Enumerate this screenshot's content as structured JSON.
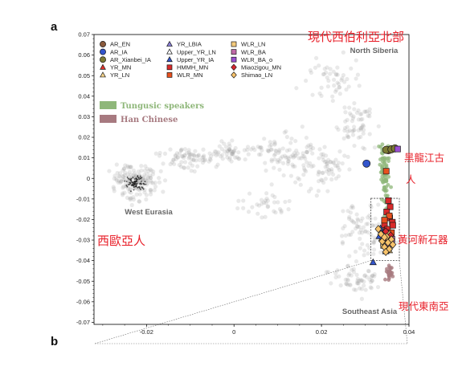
{
  "panel_labels": {
    "a": "a",
    "b": "b"
  },
  "annotations_zh": {
    "north_siberia": "現代西伯利亞北部",
    "heilongjiang": "黑龍江古人",
    "yellow_river": "黃河新石器",
    "west_europe": "西歐亞人",
    "southeast_asia": "現代東南亞"
  },
  "colors": {
    "annotation_red": "#e8202a",
    "background_samples": "#9a9a9a",
    "tungusic": "#8fb77a",
    "han": "#a77a80",
    "frame": "#000000"
  },
  "icons": {
    "circle": "circle-marker",
    "triangle": "triangle-marker",
    "square": "square-marker",
    "diamond": "diamond-marker"
  },
  "chart_data": {
    "type": "scatter",
    "xlim": [
      -0.032,
      0.04
    ],
    "ylim": [
      -0.071,
      0.07
    ],
    "x_ticks": [
      -0.02,
      0,
      0.02,
      0.04
    ],
    "x_tick_labels": [
      "-0.02",
      "0",
      "0.02",
      "0.04"
    ],
    "y_ticks": [
      0.07,
      0.06,
      0.05,
      0.04,
      0.03,
      0.02,
      0.01,
      0,
      -0.01,
      -0.02,
      -0.03,
      -0.04,
      -0.05,
      -0.06,
      -0.07
    ],
    "y_tick_labels": [
      "0.07",
      "0.06",
      "0.05",
      "0.04",
      "0.03",
      "0.02",
      "0.01",
      "0",
      "-0.01",
      "-0.02",
      "-0.03",
      "-0.04",
      "-0.05",
      "-0.06",
      "-0.07"
    ],
    "grid": false,
    "legend_position": "top-left",
    "region_labels": [
      {
        "text": "North Siberia",
        "x": 0.032,
        "y": 0.061
      },
      {
        "text": "West Eurasia",
        "x": -0.0195,
        "y": -0.0175
      },
      {
        "text": "Southeast Asia",
        "x": 0.031,
        "y": -0.066
      }
    ],
    "series": [
      {
        "name": "AR_EN",
        "marker": "circle",
        "color": "#8a5a3c",
        "points": [
          [
            0.0353,
            0.0137
          ]
        ]
      },
      {
        "name": "AR_IA",
        "marker": "circle",
        "color": "#3355cc",
        "points": [
          [
            0.0303,
            0.0072
          ]
        ]
      },
      {
        "name": "AR_Xianbei_IA",
        "marker": "circle",
        "color": "#7c7a34",
        "points": [
          [
            0.0348,
            0.0139
          ],
          [
            0.036,
            0.0142
          ],
          [
            0.0368,
            0.0146
          ]
        ]
      },
      {
        "name": "YR_MN",
        "marker": "triangle",
        "color": "#e0332c",
        "points": [
          [
            0.0345,
            -0.0245
          ],
          [
            0.0352,
            -0.0262
          ],
          [
            0.0348,
            -0.0305
          ],
          [
            0.0357,
            -0.0286
          ]
        ]
      },
      {
        "name": "YR_LN",
        "marker": "triangle",
        "color": "#f5d38a",
        "points": [
          [
            0.0343,
            -0.0272
          ],
          [
            0.0352,
            -0.0331
          ],
          [
            0.0338,
            -0.0292
          ],
          [
            0.0355,
            -0.035
          ]
        ]
      },
      {
        "name": "YR_LBIA",
        "marker": "triangle",
        "color": "#8a7fd8",
        "points": [
          [
            0.0336,
            -0.0281
          ],
          [
            0.0346,
            -0.0317
          ],
          [
            0.0355,
            -0.0303
          ]
        ]
      },
      {
        "name": "Upper_YR_LN",
        "marker": "triangle",
        "color": "#ffffff",
        "points": [
          [
            0.0342,
            -0.0312
          ],
          [
            0.035,
            -0.0338
          ]
        ]
      },
      {
        "name": "Upper_YR_IA",
        "marker": "triangle",
        "color": "#3355cc",
        "points": [
          [
            0.0335,
            -0.0243
          ],
          [
            0.0341,
            -0.0263
          ],
          [
            0.0332,
            -0.0281
          ],
          [
            0.0347,
            -0.0355
          ],
          [
            0.0318,
            -0.0408
          ]
        ]
      },
      {
        "name": "HMMH_MN",
        "marker": "square",
        "color": "#d92a2a",
        "points": [
          [
            0.0353,
            -0.0108
          ],
          [
            0.0357,
            -0.0138
          ],
          [
            0.0349,
            -0.0163
          ],
          [
            0.0356,
            -0.0192
          ],
          [
            0.0362,
            -0.0213
          ],
          [
            0.0344,
            -0.0225
          ],
          [
            0.0351,
            -0.0247
          ],
          [
            0.0363,
            -0.0228
          ]
        ]
      },
      {
        "name": "WLR_MN",
        "marker": "square",
        "color": "#e8501e",
        "points": [
          [
            0.0348,
            0.0035
          ],
          [
            0.0355,
            -0.0182
          ],
          [
            0.0344,
            -0.0203
          ],
          [
            0.036,
            -0.0264
          ]
        ]
      },
      {
        "name": "WLR_LN",
        "marker": "square",
        "color": "#f4ca7c",
        "points": [
          [
            0.0351,
            -0.027
          ],
          [
            0.0346,
            -0.029
          ],
          [
            0.0357,
            -0.0312
          ],
          [
            0.0342,
            -0.0326
          ]
        ]
      },
      {
        "name": "WLR_BA",
        "marker": "square",
        "color": "#c06aa8",
        "points": [
          [
            0.0361,
            -0.0296
          ],
          [
            0.0353,
            -0.0318
          ]
        ]
      },
      {
        "name": "WLR_BA_o",
        "marker": "square",
        "color": "#9a4fd0",
        "points": [
          [
            0.0374,
            0.0143
          ]
        ]
      },
      {
        "name": "Miaozigou_MN",
        "marker": "diamond",
        "color": "#d8262e",
        "points": [
          [
            0.0347,
            -0.0258
          ],
          [
            0.0358,
            -0.0277
          ],
          [
            0.0341,
            -0.03
          ]
        ]
      },
      {
        "name": "Shimao_LN",
        "marker": "diamond",
        "color": "#f7c26a",
        "points": [
          [
            0.0336,
            -0.0271
          ],
          [
            0.0349,
            -0.0284
          ],
          [
            0.036,
            -0.0297
          ],
          [
            0.0339,
            -0.0306
          ],
          [
            0.0352,
            -0.0312
          ],
          [
            0.0363,
            -0.0322
          ],
          [
            0.0344,
            -0.0334
          ],
          [
            0.0355,
            -0.0344
          ],
          [
            0.0347,
            -0.0358
          ],
          [
            0.033,
            -0.0246
          ],
          [
            0.0344,
            -0.0286
          ]
        ]
      }
    ],
    "populations": [
      {
        "name": "Tungusic speakers",
        "color": "#8fb77a"
      },
      {
        "name": "Han Chinese",
        "color": "#a77a80"
      }
    ]
  }
}
